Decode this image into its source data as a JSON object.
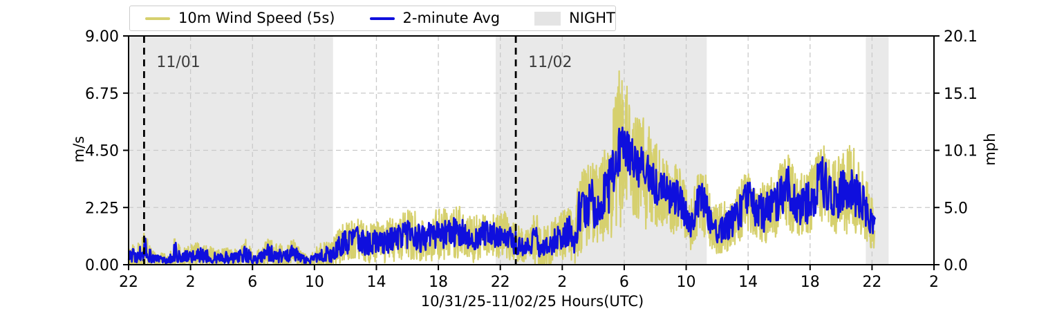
{
  "figure": {
    "legend": {
      "items": [
        {
          "label": "10m Wind Speed (5s)",
          "type": "line",
          "color": "#d6d06e"
        },
        {
          "label": "2-minute Avg",
          "type": "line",
          "color": "#0f0fdd"
        },
        {
          "label": "NIGHT",
          "type": "patch",
          "color": "#e4e4e4"
        }
      ]
    }
  },
  "chart_data": {
    "type": "line",
    "title": "",
    "xlabel": "10/31/25-11/02/25  Hours(UTC)",
    "ylabel_left": "m/s",
    "ylabel_right": "mph",
    "x_axis": {
      "unit": "hours UTC, t=0 at 22:00 10/31/25",
      "xlim_hours": [
        0,
        52
      ],
      "tick_interval_hours": 4,
      "tick_labels": [
        "22",
        "2",
        "6",
        "10",
        "14",
        "18",
        "22",
        "2",
        "6",
        "10",
        "14",
        "18",
        "22",
        "2"
      ]
    },
    "y_axis_left": {
      "ylim": [
        0,
        9
      ],
      "tick_values": [
        0,
        2.25,
        4.5,
        6.75,
        9
      ],
      "tick_labels": [
        "0.00",
        "2.25",
        "4.50",
        "6.75",
        "9.00"
      ]
    },
    "y_axis_right": {
      "tick_labels": [
        "0.0",
        "5.0",
        "10.1",
        "15.1",
        "20.1"
      ]
    },
    "grid": true,
    "legend_position": "top",
    "night_spans_hours": [
      [
        0,
        13.2
      ],
      [
        23.7,
        37.33
      ],
      [
        47.6,
        49.07
      ]
    ],
    "day_markers": [
      {
        "label": "11/01",
        "t_hours": 1.0
      },
      {
        "label": "11/02",
        "t_hours": 25.0
      }
    ],
    "series": [
      {
        "name": "10m Wind Speed (5s)",
        "color": "#d6d06e",
        "band_column": "raw_band_ms"
      },
      {
        "name": "2-minute Avg",
        "color": "#0f0fdd",
        "band_column": "avg_band_ms"
      }
    ],
    "data_end_hour": 48.2,
    "profile_columns": [
      "t_hours",
      "mean_ms",
      "avg_band_ms",
      "raw_band_ms"
    ],
    "profile": [
      [
        0,
        0.45,
        0.35,
        0.55
      ],
      [
        0.5,
        0.3,
        0.25,
        0.4
      ],
      [
        0.9,
        0.55,
        0.45,
        0.65
      ],
      [
        1.1,
        0.6,
        0.5,
        0.7
      ],
      [
        1.5,
        0.25,
        0.2,
        0.35
      ],
      [
        2,
        0.2,
        0.18,
        0.3
      ],
      [
        2.6,
        0.15,
        0.14,
        0.25
      ],
      [
        3,
        0.5,
        0.45,
        0.65
      ],
      [
        3.4,
        0.28,
        0.24,
        0.38
      ],
      [
        4,
        0.35,
        0.3,
        0.45
      ],
      [
        4.6,
        0.4,
        0.32,
        0.5
      ],
      [
        5.2,
        0.32,
        0.28,
        0.42
      ],
      [
        5.8,
        0.25,
        0.22,
        0.35
      ],
      [
        6.4,
        0.3,
        0.26,
        0.4
      ],
      [
        7,
        0.25,
        0.22,
        0.35
      ],
      [
        7.6,
        0.45,
        0.4,
        0.58
      ],
      [
        8,
        0.2,
        0.18,
        0.3
      ],
      [
        8.6,
        0.3,
        0.26,
        0.45
      ],
      [
        9,
        0.45,
        0.4,
        0.6
      ],
      [
        9.6,
        0.35,
        0.3,
        0.5
      ],
      [
        10.1,
        0.3,
        0.28,
        0.45
      ],
      [
        10.6,
        0.5,
        0.42,
        0.62
      ],
      [
        11.1,
        0.25,
        0.2,
        0.35
      ],
      [
        11.6,
        0.15,
        0.12,
        0.25
      ],
      [
        12.1,
        0.3,
        0.25,
        0.4
      ],
      [
        12.7,
        0.45,
        0.38,
        0.58
      ],
      [
        13.1,
        0.35,
        0.3,
        0.5
      ],
      [
        13.6,
        0.8,
        0.5,
        0.75
      ],
      [
        14.2,
        0.9,
        0.52,
        0.8
      ],
      [
        14.8,
        1,
        0.55,
        0.85
      ],
      [
        15.3,
        0.82,
        0.5,
        0.8
      ],
      [
        15.9,
        0.9,
        0.52,
        0.8
      ],
      [
        16.4,
        0.86,
        0.5,
        0.8
      ],
      [
        17,
        1,
        0.58,
        0.88
      ],
      [
        17.6,
        1.1,
        0.6,
        0.92
      ],
      [
        18.2,
        1.2,
        0.62,
        1
      ],
      [
        18.8,
        1.05,
        0.6,
        0.95
      ],
      [
        19.4,
        1.1,
        0.6,
        0.98
      ],
      [
        20,
        1.2,
        0.62,
        1
      ],
      [
        20.6,
        1.22,
        0.64,
        1.02
      ],
      [
        21.2,
        1.3,
        0.65,
        1.05
      ],
      [
        21.8,
        1.15,
        0.6,
        0.98
      ],
      [
        22.2,
        0.95,
        0.55,
        0.9
      ],
      [
        22.8,
        1.2,
        0.52,
        0.9
      ],
      [
        23.3,
        1.3,
        0.52,
        0.9
      ],
      [
        23.8,
        1.1,
        0.5,
        0.85
      ],
      [
        24.3,
        1.2,
        0.55,
        0.95
      ],
      [
        24.8,
        0.9,
        0.5,
        0.8
      ],
      [
        25.3,
        0.8,
        0.45,
        0.75
      ],
      [
        25.9,
        0.7,
        0.42,
        0.72
      ],
      [
        26.3,
        1.1,
        0.65,
        1.25
      ],
      [
        26.6,
        0.6,
        0.4,
        0.8
      ],
      [
        27.1,
        0.75,
        0.48,
        0.85
      ],
      [
        27.7,
        1,
        0.55,
        0.95
      ],
      [
        28.1,
        1.15,
        0.6,
        1
      ],
      [
        28.4,
        1.4,
        0.7,
        1.1
      ],
      [
        28.7,
        0.8,
        0.5,
        0.9
      ],
      [
        29.1,
        2,
        1,
        1.6
      ],
      [
        29.5,
        2.2,
        1,
        1.7
      ],
      [
        30,
        2.4,
        1.1,
        1.9
      ],
      [
        30.5,
        2.3,
        1,
        1.8
      ],
      [
        31,
        3,
        1.2,
        2.1
      ],
      [
        31.4,
        4,
        1.3,
        2.7
      ],
      [
        31.7,
        4.6,
        1.1,
        3.3
      ],
      [
        32,
        4.7,
        1,
        2.6
      ],
      [
        32.4,
        4.4,
        1,
        2.3
      ],
      [
        32.8,
        3.9,
        0.95,
        2.2
      ],
      [
        33.1,
        3.8,
        0.9,
        2
      ],
      [
        33.4,
        3.6,
        0.9,
        2.3
      ],
      [
        33.8,
        3.3,
        0.9,
        1.8
      ],
      [
        34.2,
        3,
        0.85,
        1.6
      ],
      [
        34.7,
        2.8,
        0.8,
        1.5
      ],
      [
        35.1,
        2.6,
        0.8,
        1.4
      ],
      [
        35.6,
        2.6,
        0.78,
        1.4
      ],
      [
        36,
        2,
        0.7,
        1.2
      ],
      [
        36.3,
        1.5,
        0.6,
        1
      ],
      [
        36.8,
        2.6,
        0.8,
        1.4
      ],
      [
        37.1,
        2.5,
        0.78,
        1.4
      ],
      [
        37.4,
        2,
        0.7,
        1.2
      ],
      [
        37.7,
        1.3,
        0.58,
        1
      ],
      [
        38.1,
        1.4,
        0.6,
        1
      ],
      [
        38.6,
        1.5,
        0.62,
        1.02
      ],
      [
        39.1,
        1.8,
        0.7,
        1.1
      ],
      [
        39.6,
        2.2,
        0.8,
        1.2
      ],
      [
        40,
        2.5,
        0.9,
        1.3
      ],
      [
        40.5,
        2.2,
        0.8,
        1.2
      ],
      [
        41,
        2,
        0.8,
        1.2
      ],
      [
        41.6,
        2.3,
        0.85,
        1.3
      ],
      [
        42.1,
        2.6,
        0.9,
        1.4
      ],
      [
        42.6,
        3,
        1,
        1.55
      ],
      [
        43.1,
        2.2,
        0.8,
        1.3
      ],
      [
        43.6,
        2.3,
        0.85,
        1.32
      ],
      [
        44.1,
        2.6,
        0.92,
        1.42
      ],
      [
        44.6,
        3.3,
        1.1,
        1.6
      ],
      [
        45,
        3.2,
        1.05,
        1.6
      ],
      [
        45.5,
        2.6,
        0.9,
        1.45
      ],
      [
        46.1,
        2.8,
        1,
        1.6
      ],
      [
        46.7,
        3,
        1.1,
        1.8
      ],
      [
        47.1,
        2.6,
        0.9,
        1.5
      ],
      [
        47.6,
        2.2,
        0.8,
        1.3
      ],
      [
        48,
        1.6,
        0.6,
        1
      ],
      [
        48.2,
        1.4,
        0.5,
        0.9
      ]
    ]
  },
  "colors": {
    "raw_series": "#d6d06e",
    "avg_series": "#0f0fdd",
    "night_shade": "#e9e9e9",
    "grid": "#c9c9c9",
    "day_marker_line": "#000000",
    "day_marker_text": "#3c3c3c",
    "axis": "#000000"
  }
}
